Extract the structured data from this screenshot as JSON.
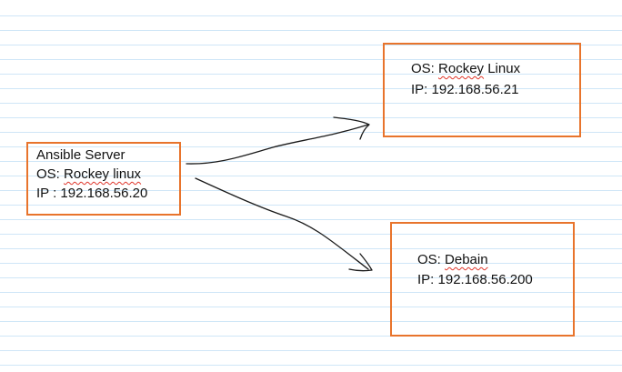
{
  "accent_color": "#e8742c",
  "ruled_line_color": "#cfe6f7",
  "spellcheck_color": "#e0362b",
  "nodes": {
    "ansible_server": {
      "title": "Ansible Server",
      "os_label": "OS: ",
      "os_value": "Rockey linux",
      "ip": "IP : 192.168.56.20"
    },
    "rocky_target": {
      "os_label": "OS: ",
      "os_value": "Rockey",
      "os_suffix": " Linux",
      "ip": "IP: 192.168.56.21"
    },
    "debian_target": {
      "os_label": "OS: ",
      "os_value": "Debain",
      "ip": "IP: 192.168.56.200"
    }
  },
  "edges": [
    {
      "from": "ansible_server",
      "to": "rocky_target"
    },
    {
      "from": "ansible_server",
      "to": "debian_target"
    }
  ]
}
